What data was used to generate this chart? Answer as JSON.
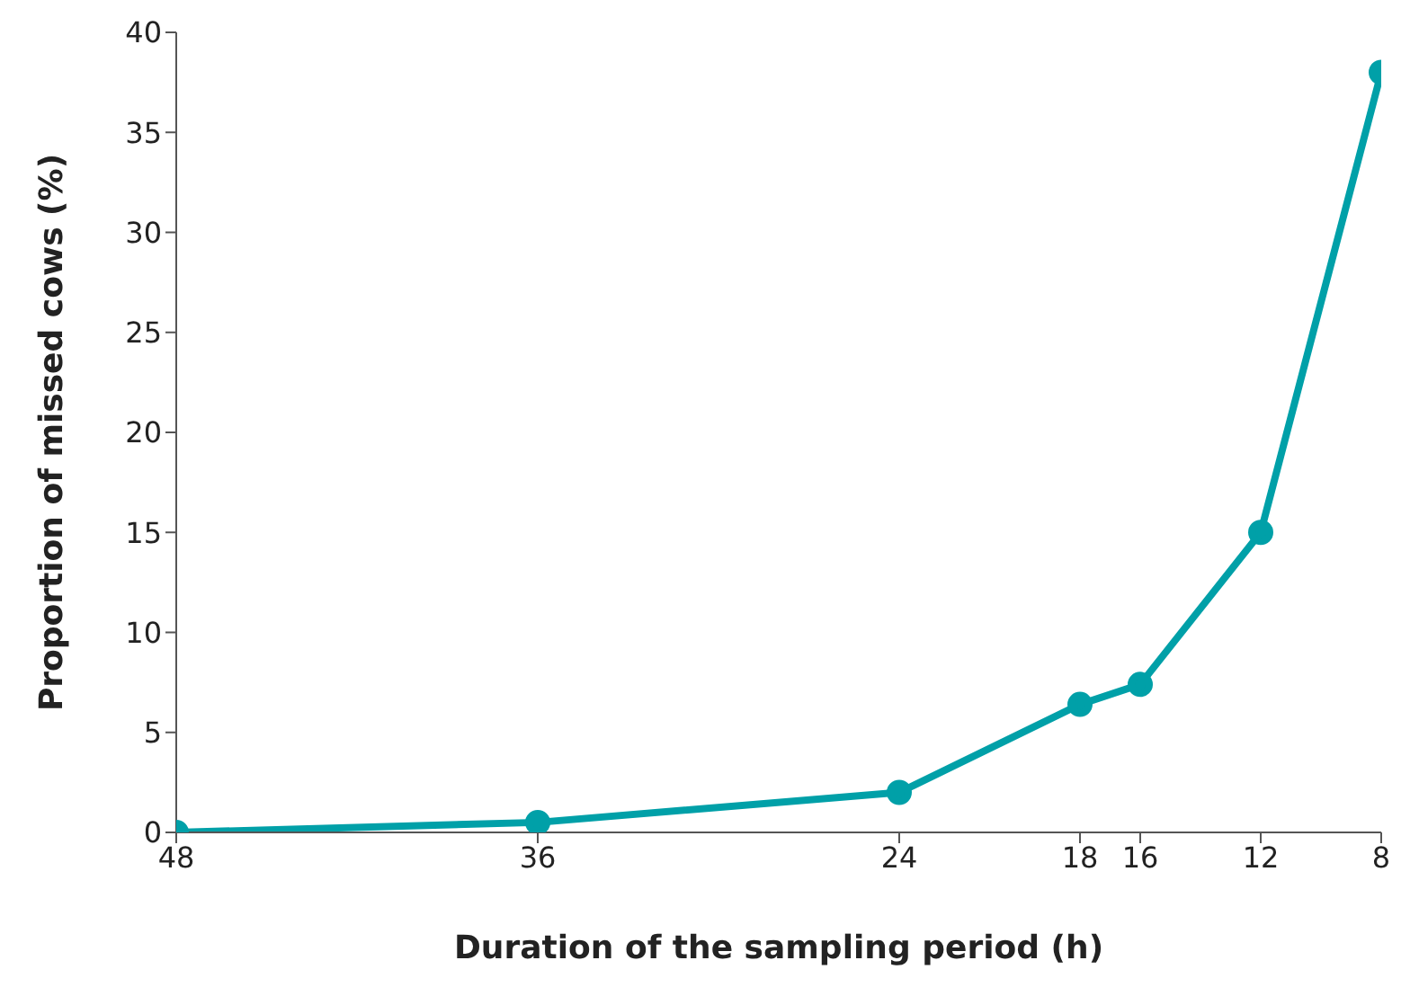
{
  "chart_data": {
    "type": "line",
    "xlabel": "Duration of the sampling period (h)",
    "ylabel": "Proportion of missed cows (%)",
    "x": [
      48,
      36,
      24,
      18,
      16,
      12,
      8
    ],
    "series": [
      {
        "color": "#00a0a8",
        "values": [
          0,
          0.5,
          2,
          6.4,
          7.4,
          15,
          38
        ]
      }
    ],
    "xlim": [
      48,
      8
    ],
    "xticks": [
      48,
      36,
      24,
      18,
      16,
      12,
      8
    ],
    "ylim": [
      0,
      40
    ],
    "yticks": [
      0,
      5,
      10,
      15,
      20,
      25,
      30,
      35,
      40
    ],
    "grid": false,
    "legend": false,
    "marker": "circle",
    "line_style": "solid"
  }
}
